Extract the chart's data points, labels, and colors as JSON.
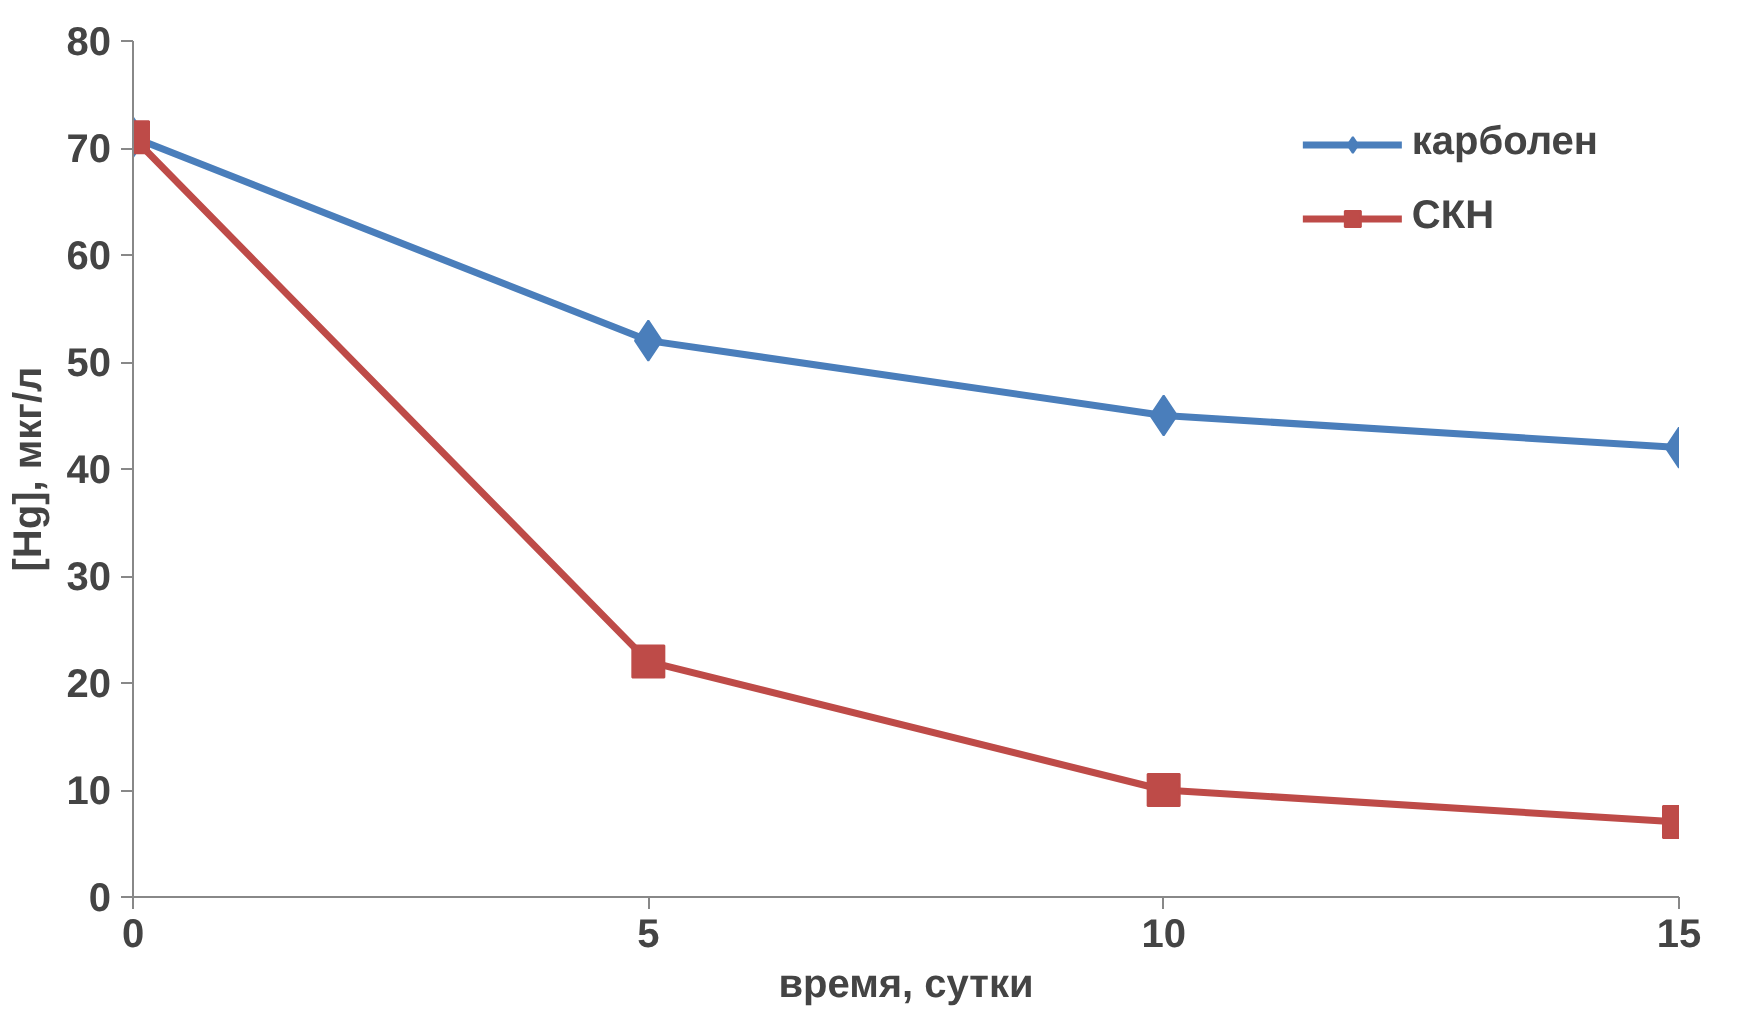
{
  "chart_data": {
    "type": "line",
    "xlabel": "время, сутки",
    "ylabel": "[Hg], мкг/л",
    "x": [
      0,
      5,
      10,
      15
    ],
    "series": [
      {
        "name": "карболен",
        "color": "#4a7ebb",
        "marker": "diamond",
        "values": [
          71,
          52,
          45,
          42
        ]
      },
      {
        "name": "СКН",
        "color": "#be4b48",
        "marker": "square",
        "values": [
          71,
          22,
          10,
          7
        ]
      }
    ],
    "xlim": [
      0,
      15
    ],
    "xticks": [
      0,
      5,
      10,
      15
    ],
    "ylim": [
      0,
      80
    ],
    "yticks": [
      0,
      10,
      20,
      30,
      40,
      50,
      60,
      70,
      80
    ],
    "grid": false,
    "legend": "top right",
    "line_style": "solid"
  }
}
